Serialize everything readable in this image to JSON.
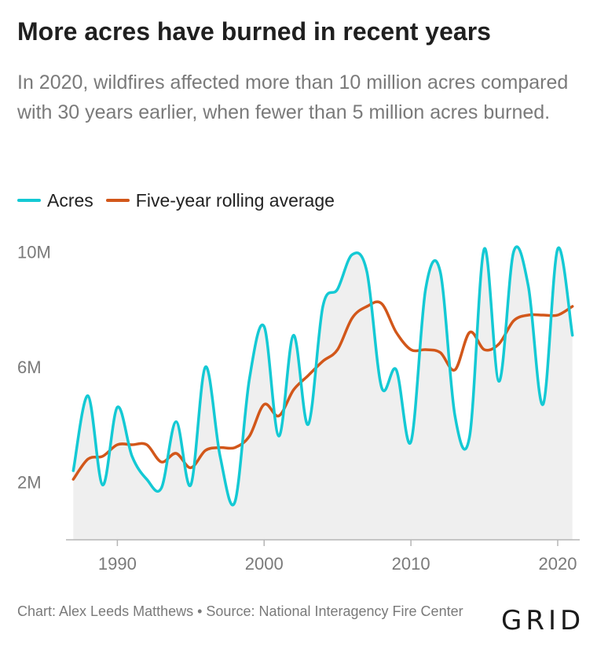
{
  "title": "More acres have burned in recent years",
  "subtitle": "In 2020, wildfires affected more than 10 million acres compared with 30 years earlier, when fewer than 5 million acres burned.",
  "legend": [
    {
      "label": "Acres",
      "color": "#14c9d4"
    },
    {
      "label": "Five-year rolling average",
      "color": "#d2571a"
    }
  ],
  "footer": "Chart: Alex Leeds Matthews • Source: National Interagency Fire Center",
  "logo": "GRID",
  "chart_data": {
    "type": "line",
    "title": "More acres have burned in recent years",
    "xlabel": "",
    "ylabel": "",
    "ylim": [
      0,
      10500000
    ],
    "xlim": [
      1986.5,
      2021.5
    ],
    "x_ticks": [
      1990,
      2000,
      2010,
      2020
    ],
    "x_tick_labels": [
      "1990",
      "2000",
      "2010",
      "2020"
    ],
    "y_ticks": [
      2000000,
      6000000,
      10000000
    ],
    "y_tick_labels": [
      "2M",
      "6M",
      "10M"
    ],
    "grid": false,
    "legend_position": "top-left",
    "x": [
      1987,
      1988,
      1989,
      1990,
      1991,
      1992,
      1993,
      1994,
      1995,
      1996,
      1997,
      1998,
      1999,
      2000,
      2001,
      2002,
      2003,
      2004,
      2005,
      2006,
      2007,
      2008,
      2009,
      2010,
      2011,
      2012,
      2013,
      2014,
      2015,
      2016,
      2017,
      2018,
      2019,
      2020,
      2021
    ],
    "series": [
      {
        "name": "Acres",
        "color": "#14c9d4",
        "fill": "#efefef",
        "values": [
          2400000,
          5000000,
          1900000,
          4600000,
          2900000,
          2100000,
          1800000,
          4100000,
          1900000,
          6000000,
          2900000,
          1300000,
          5600000,
          7400000,
          3600000,
          7100000,
          4000000,
          8100000,
          8700000,
          9900000,
          9300000,
          5300000,
          5900000,
          3400000,
          8700000,
          9300000,
          4300000,
          3600000,
          10100000,
          5500000,
          10000000,
          8800000,
          4700000,
          10100000,
          7100000
        ]
      },
      {
        "name": "Five-year rolling average",
        "color": "#d2571a",
        "values": [
          2100000,
          2800000,
          2900000,
          3300000,
          3300000,
          3300000,
          2700000,
          3000000,
          2500000,
          3100000,
          3200000,
          3200000,
          3600000,
          4700000,
          4300000,
          5200000,
          5700000,
          6200000,
          6600000,
          7700000,
          8100000,
          8200000,
          7200000,
          6600000,
          6600000,
          6500000,
          5900000,
          7200000,
          6600000,
          6800000,
          7600000,
          7800000,
          7800000,
          7800000,
          8100000
        ]
      }
    ]
  }
}
